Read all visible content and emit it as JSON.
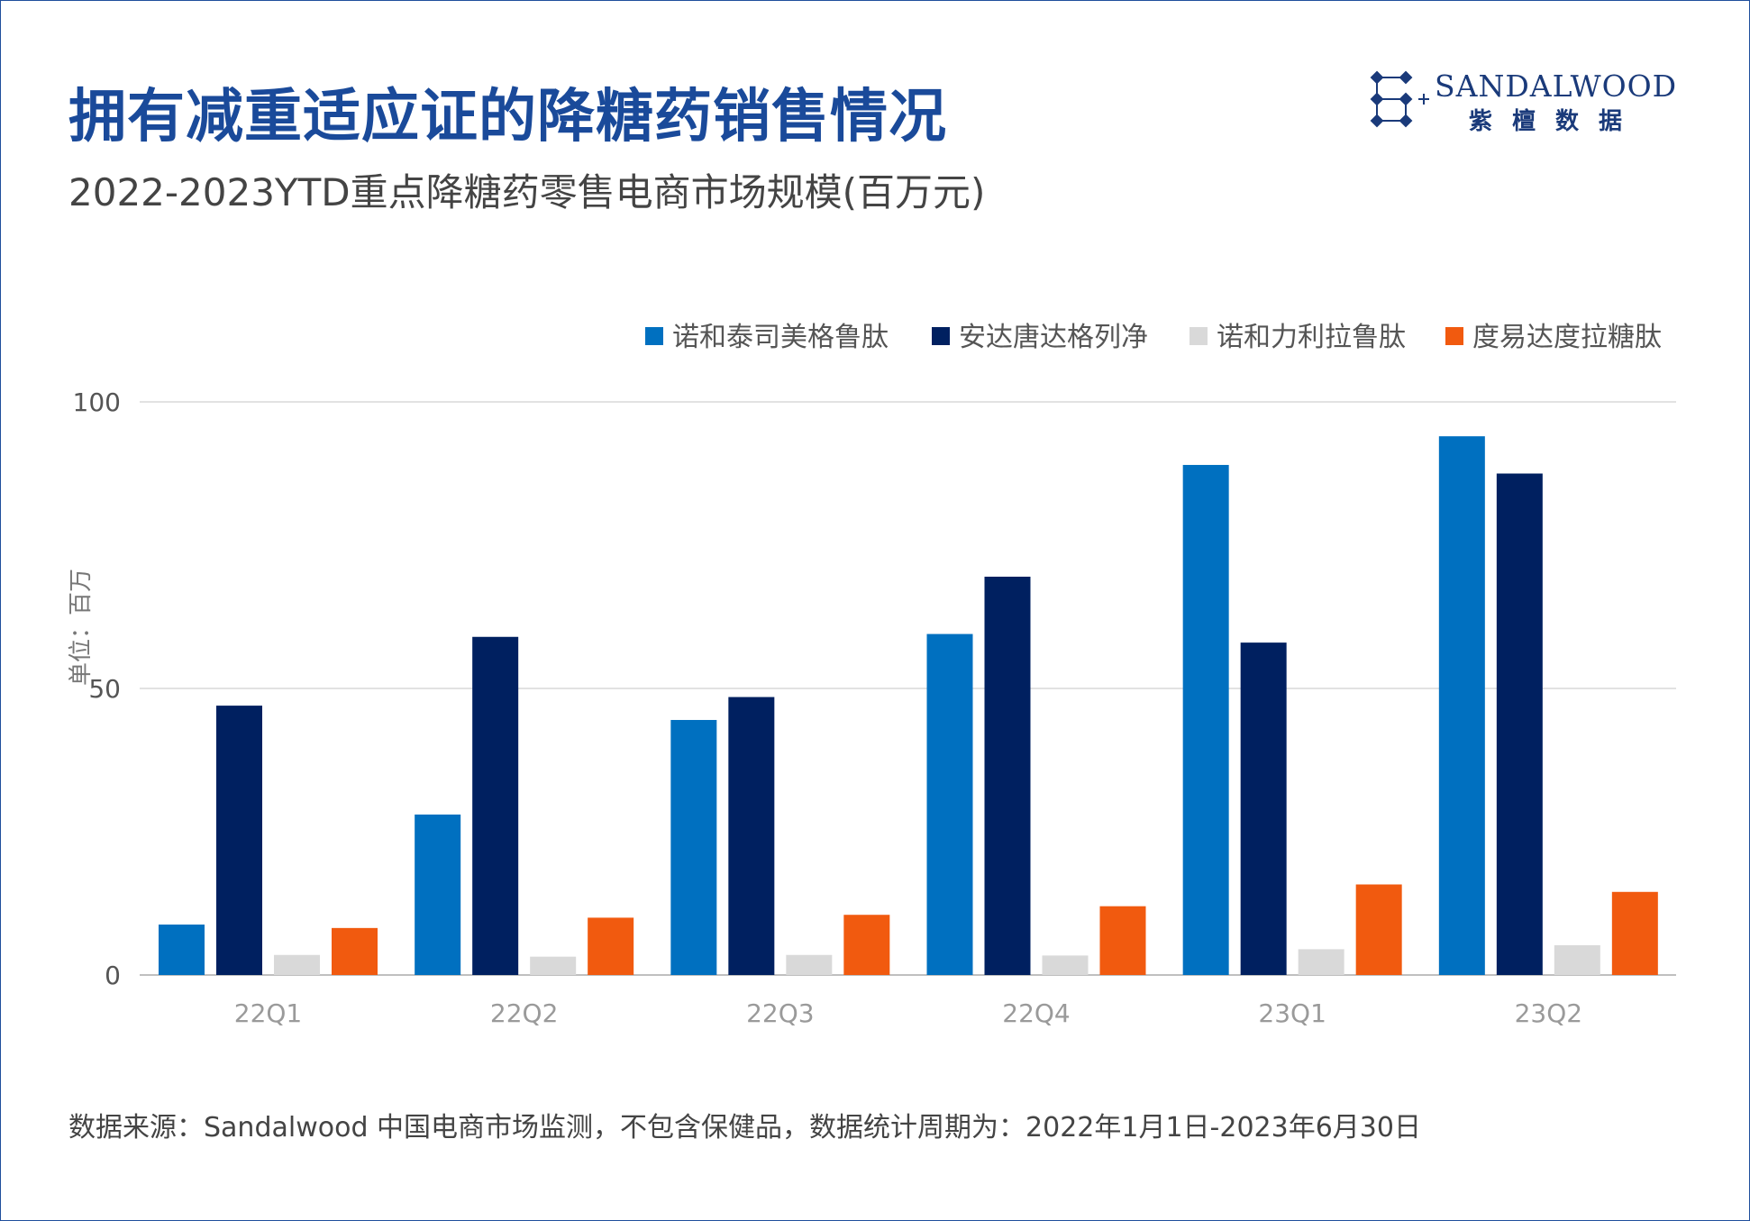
{
  "header": {
    "title": "拥有减重适应证的降糖药销售情况",
    "subtitle": "2022-2023YTD重点降糖药零售电商市场规模(百万元)"
  },
  "logo": {
    "name_en": "SANDALWOOD",
    "name_cn": "紫檀数据",
    "color": "#1a3a7a"
  },
  "footnote": "数据来源：Sandalwood 中国电商市场监测，不包含保健品，数据统计周期为：2022年1月1日-2023年6月30日",
  "chart_data": {
    "type": "bar",
    "title": "",
    "xlabel": "",
    "ylabel": "单位：百万",
    "ylim": [
      0,
      100
    ],
    "yticks": [
      0,
      50,
      100
    ],
    "grid": true,
    "legend_position": "top-right",
    "categories": [
      "22Q1",
      "22Q2",
      "22Q3",
      "22Q4",
      "23Q1",
      "23Q2"
    ],
    "series": [
      {
        "name": "诺和泰司美格鲁肽",
        "color": "#0070c0",
        "values": [
          8.8,
          28,
          44.5,
          59.5,
          89,
          94
        ]
      },
      {
        "name": "安达唐达格列净",
        "color": "#002060",
        "values": [
          47,
          59,
          48.5,
          69.5,
          58,
          87.5
        ]
      },
      {
        "name": "诺和力利拉鲁肽",
        "color": "#d9d9d9",
        "values": [
          3.5,
          3.2,
          3.5,
          3.4,
          4.5,
          5.2
        ]
      },
      {
        "name": "度易达度拉糖肽",
        "color": "#f15a0f",
        "values": [
          8.2,
          10,
          10.5,
          12,
          15.8,
          14.5
        ]
      }
    ]
  }
}
